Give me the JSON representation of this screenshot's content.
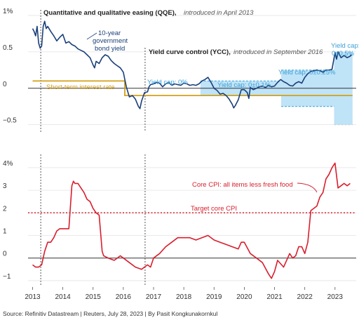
{
  "chart_data": [
    {
      "type": "line",
      "ylim": [
        -0.6,
        1.0
      ],
      "yticks": [
        {
          "v": 1,
          "label": "1%"
        },
        {
          "v": 0.5,
          "label": "0.5"
        },
        {
          "v": 0,
          "label": "0"
        },
        {
          "v": -0.5,
          "label": "−0.5"
        }
      ],
      "annotations": {
        "qqe_title": "Quantitative and qualitative easing (QQE),",
        "qqe_sub": "introduced in April 2013",
        "ycc_title": "Yield curve control (YCC),",
        "ycc_sub": "introduced in September 2016",
        "bond_label": [
          "10-year",
          "government",
          "bond yield"
        ],
        "short_rate_label": "Short-term interest rate",
        "cap1": "Yield cap: 0%",
        "cap2": "Yield cap: 0±0.1%",
        "cap3": "Yield cap: 0±0.25%",
        "cap4": [
          "Yield cap:",
          "0±0.5%"
        ]
      },
      "event_lines": {
        "qqe": 2013.27,
        "ycc": 2016.72
      },
      "bands": [
        {
          "x0": 2016.72,
          "x1": 2018.55,
          "lo": 0.0,
          "hi": 0.0
        },
        {
          "x0": 2018.55,
          "x1": 2021.22,
          "lo": -0.1,
          "hi": 0.1
        },
        {
          "x0": 2021.22,
          "x1": 2022.97,
          "lo": -0.25,
          "hi": 0.25
        },
        {
          "x0": 2022.97,
          "x1": 2023.58,
          "lo": -0.5,
          "hi": 0.5
        }
      ],
      "series": [
        {
          "name": "10-year government bond yield",
          "color": "#1a3f7a",
          "x": [
            2013.0,
            2013.05,
            2013.1,
            2013.15,
            2013.2,
            2013.25,
            2013.3,
            2013.35,
            2013.4,
            2013.45,
            2013.5,
            2013.6,
            2013.7,
            2013.8,
            2013.9,
            2014.0,
            2014.1,
            2014.2,
            2014.3,
            2014.4,
            2014.5,
            2014.6,
            2014.7,
            2014.8,
            2014.9,
            2015.0,
            2015.05,
            2015.1,
            2015.2,
            2015.3,
            2015.4,
            2015.5,
            2015.6,
            2015.7,
            2015.8,
            2015.9,
            2016.0,
            2016.05,
            2016.1,
            2016.15,
            2016.2,
            2016.3,
            2016.4,
            2016.5,
            2016.55,
            2016.6,
            2016.7,
            2016.8,
            2016.85,
            2016.9,
            2017.0,
            2017.1,
            2017.2,
            2017.3,
            2017.4,
            2017.5,
            2017.6,
            2017.7,
            2017.8,
            2017.9,
            2018.0,
            2018.1,
            2018.2,
            2018.3,
            2018.4,
            2018.5,
            2018.6,
            2018.7,
            2018.8,
            2018.9,
            2019.0,
            2019.1,
            2019.2,
            2019.3,
            2019.4,
            2019.5,
            2019.6,
            2019.65,
            2019.7,
            2019.8,
            2019.9,
            2020.0,
            2020.1,
            2020.15,
            2020.2,
            2020.3,
            2020.4,
            2020.5,
            2020.6,
            2020.7,
            2020.8,
            2020.9,
            2021.0,
            2021.1,
            2021.2,
            2021.3,
            2021.4,
            2021.5,
            2021.6,
            2021.7,
            2021.8,
            2021.9,
            2022.0,
            2022.1,
            2022.2,
            2022.3,
            2022.4,
            2022.5,
            2022.6,
            2022.7,
            2022.8,
            2022.9,
            2022.97,
            2023.0,
            2023.05,
            2023.1,
            2023.2,
            2023.3,
            2023.4,
            2023.5,
            2023.55
          ],
          "y": [
            0.82,
            0.78,
            0.72,
            0.85,
            0.62,
            0.55,
            0.58,
            0.85,
            0.92,
            0.82,
            0.85,
            0.78,
            0.72,
            0.65,
            0.7,
            0.74,
            0.62,
            0.64,
            0.6,
            0.58,
            0.54,
            0.52,
            0.5,
            0.46,
            0.42,
            0.32,
            0.28,
            0.37,
            0.34,
            0.42,
            0.46,
            0.44,
            0.38,
            0.34,
            0.31,
            0.28,
            0.22,
            0.12,
            0.02,
            -0.05,
            -0.12,
            -0.1,
            -0.15,
            -0.25,
            -0.28,
            -0.18,
            -0.06,
            -0.05,
            0.02,
            0.05,
            0.06,
            0.08,
            0.07,
            0.02,
            0.06,
            0.08,
            0.04,
            0.06,
            0.05,
            0.04,
            0.07,
            0.06,
            0.04,
            0.05,
            0.04,
            0.06,
            0.1,
            0.12,
            0.15,
            0.08,
            0.0,
            -0.03,
            -0.08,
            -0.07,
            -0.1,
            -0.15,
            -0.22,
            -0.27,
            -0.24,
            -0.16,
            -0.02,
            -0.02,
            -0.06,
            -0.14,
            0.01,
            -0.02,
            0.0,
            0.02,
            0.03,
            0.01,
            0.04,
            0.02,
            0.03,
            0.08,
            0.12,
            0.09,
            0.07,
            0.04,
            0.03,
            0.07,
            0.09,
            0.07,
            0.15,
            0.2,
            0.23,
            0.24,
            0.25,
            0.24,
            0.22,
            0.25,
            0.25,
            0.26,
            0.42,
            0.49,
            0.4,
            0.5,
            0.42,
            0.45,
            0.42,
            0.44,
            0.46
          ]
        },
        {
          "name": "Short-term interest rate",
          "color": "#d4a017",
          "x": [
            2013.0,
            2016.05,
            2016.05,
            2023.58
          ],
          "y": [
            0.1,
            0.1,
            -0.1,
            -0.1
          ]
        }
      ]
    },
    {
      "type": "line",
      "ylim": [
        -1.25,
        4.4
      ],
      "yticks": [
        {
          "v": 4,
          "label": "4%"
        },
        {
          "v": 3,
          "label": "3"
        },
        {
          "v": 2,
          "label": "2"
        },
        {
          "v": 1,
          "label": "1"
        },
        {
          "v": 0,
          "label": "0"
        },
        {
          "v": -1,
          "label": "−1"
        }
      ],
      "xlim": [
        2012.85,
        2023.7
      ],
      "xticks": [
        "2013",
        "2014",
        "2015",
        "2016",
        "2017",
        "2018",
        "2019",
        "2020",
        "2021",
        "2022",
        "2023"
      ],
      "target_line": {
        "value": 2.0,
        "label": "Target core CPI",
        "color": "#d81e2c"
      },
      "core_label": "Core CPI: all items less fresh food",
      "series": [
        {
          "name": "Core CPI: all items less fresh food",
          "color": "#d81e2c",
          "x": [
            2013.0,
            2013.1,
            2013.2,
            2013.3,
            2013.4,
            2013.5,
            2013.6,
            2013.7,
            2013.8,
            2013.9,
            2014.0,
            2014.1,
            2014.2,
            2014.3,
            2014.35,
            2014.4,
            2014.5,
            2014.6,
            2014.7,
            2014.8,
            2014.9,
            2015.0,
            2015.1,
            2015.2,
            2015.3,
            2015.35,
            2015.5,
            2015.7,
            2015.9,
            2016.0,
            2016.2,
            2016.4,
            2016.6,
            2016.8,
            2016.9,
            2017.0,
            2017.2,
            2017.4,
            2017.6,
            2017.8,
            2018.0,
            2018.2,
            2018.4,
            2018.6,
            2018.8,
            2019.0,
            2019.2,
            2019.4,
            2019.6,
            2019.8,
            2019.9,
            2020.0,
            2020.2,
            2020.4,
            2020.6,
            2020.8,
            2020.9,
            2021.0,
            2021.1,
            2021.3,
            2021.5,
            2021.6,
            2021.7,
            2021.8,
            2021.9,
            2022.0,
            2022.1,
            2022.2,
            2022.3,
            2022.4,
            2022.5,
            2022.6,
            2022.7,
            2022.8,
            2022.9,
            2023.0,
            2023.1,
            2023.2,
            2023.3,
            2023.4,
            2023.5
          ],
          "y": [
            -0.3,
            -0.4,
            -0.4,
            -0.3,
            0.3,
            0.7,
            0.7,
            0.9,
            1.2,
            1.3,
            1.3,
            1.3,
            1.3,
            3.2,
            3.4,
            3.3,
            3.3,
            3.1,
            2.9,
            2.6,
            2.5,
            2.2,
            2.0,
            1.9,
            0.3,
            0.1,
            0.0,
            -0.1,
            0.1,
            0.0,
            -0.2,
            -0.4,
            -0.5,
            -0.3,
            -0.4,
            0.0,
            0.2,
            0.5,
            0.7,
            0.9,
            0.9,
            0.9,
            0.8,
            0.9,
            1.0,
            0.8,
            0.7,
            0.6,
            0.5,
            0.4,
            0.7,
            0.7,
            0.2,
            0.0,
            -0.2,
            -0.7,
            -0.9,
            -0.6,
            -0.1,
            -0.4,
            0.2,
            0.0,
            0.1,
            0.5,
            0.5,
            0.2,
            0.7,
            2.1,
            2.2,
            2.3,
            2.7,
            2.9,
            3.5,
            3.7,
            4.0,
            4.2,
            3.1,
            3.2,
            3.3,
            3.2,
            3.3
          ]
        }
      ]
    }
  ],
  "source": "Source: Refinitiv Datastream | Reuters, July 28, 2023 | By Pasit Kongkunakornkul"
}
